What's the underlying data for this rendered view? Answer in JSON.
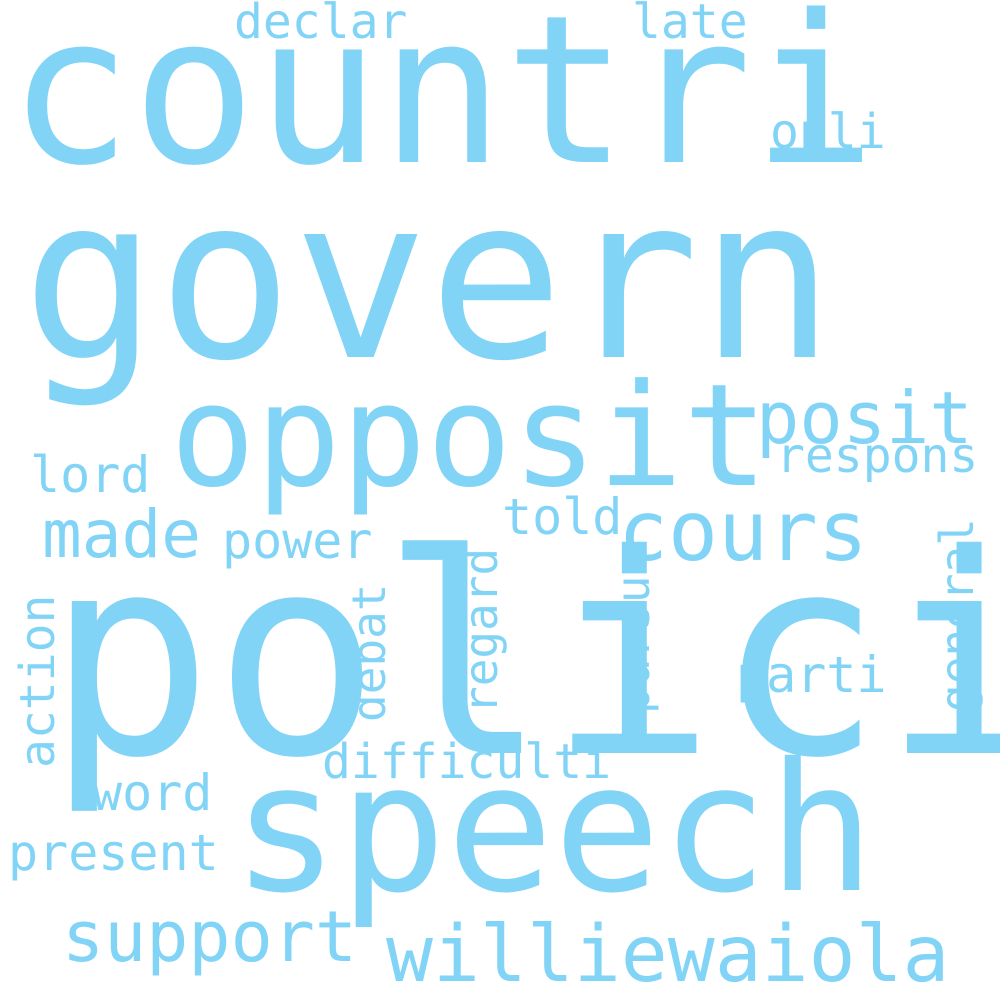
{
  "word_cloud": {
    "color": "#82d4f7",
    "background": "#ffffff",
    "words": [
      {
        "id": "countri",
        "text": "countri"
      },
      {
        "id": "govern",
        "text": "govern"
      },
      {
        "id": "opposit",
        "text": "opposit"
      },
      {
        "id": "polici",
        "text": "polici"
      },
      {
        "id": "speech",
        "text": "speech"
      },
      {
        "id": "williewaiola",
        "text": "williewaiola"
      },
      {
        "id": "cours",
        "text": "cours"
      },
      {
        "id": "posit",
        "text": "posit"
      },
      {
        "id": "respons",
        "text": "respons"
      },
      {
        "id": "support",
        "text": "support"
      },
      {
        "id": "made",
        "text": "made"
      },
      {
        "id": "lord",
        "text": "lord"
      },
      {
        "id": "power",
        "text": "power"
      },
      {
        "id": "told",
        "text": "told"
      },
      {
        "id": "declar",
        "text": "declar"
      },
      {
        "id": "late",
        "text": "late"
      },
      {
        "id": "onli",
        "text": "onli"
      },
      {
        "id": "parti",
        "text": "parti"
      },
      {
        "id": "difficulti",
        "text": "difficulti"
      },
      {
        "id": "word",
        "text": "word"
      },
      {
        "id": "present",
        "text": "present"
      },
      {
        "id": "action",
        "text": "action"
      },
      {
        "id": "debat",
        "text": "debat"
      },
      {
        "id": "regard",
        "text": "regard"
      },
      {
        "id": "pursu",
        "text": "pursu"
      },
      {
        "id": "general",
        "text": "general"
      }
    ]
  }
}
